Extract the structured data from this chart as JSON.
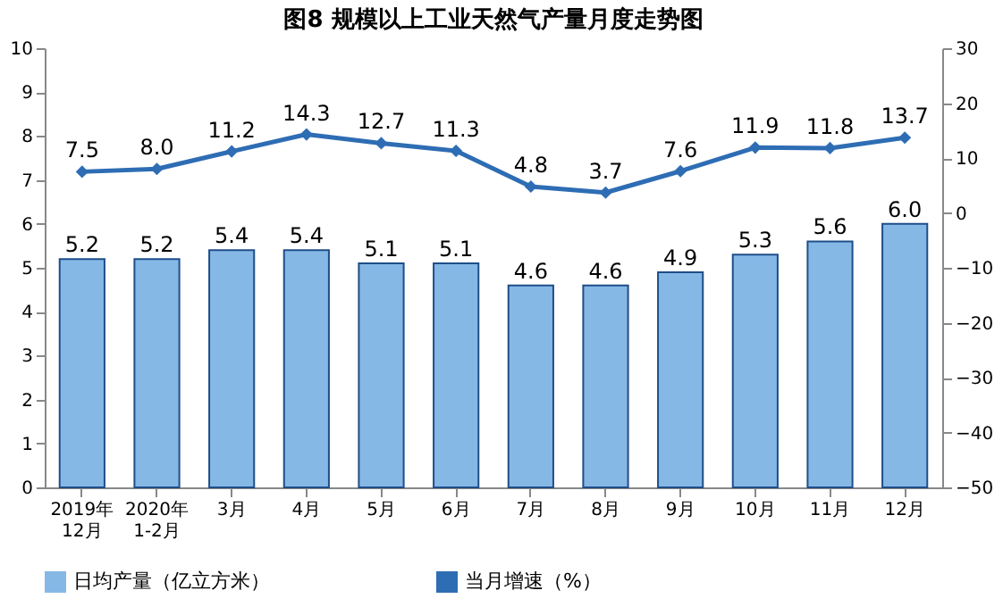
{
  "chart_data": {
    "type": "bar",
    "title": "图8  规模以上工业天然气产量月度走势图",
    "categories": [
      "2019年\n12月",
      "2020年\n1-2月",
      "3月",
      "4月",
      "5月",
      "6月",
      "7月",
      "8月",
      "9月",
      "10月",
      "11月",
      "12月"
    ],
    "series": [
      {
        "name": "日均产量（亿立方米）",
        "color": "#86b8e6",
        "values": [
          5.2,
          5.2,
          5.4,
          5.4,
          5.1,
          5.1,
          4.6,
          4.6,
          4.9,
          5.3,
          5.6,
          6.0
        ],
        "value_labels": [
          "5.2",
          "5.2",
          "5.4",
          "5.4",
          "5.1",
          "5.1",
          "4.6",
          "4.6",
          "4.9",
          "5.3",
          "5.6",
          "6.0"
        ]
      },
      {
        "name": "当月增速（%）",
        "type": "line",
        "axis": "y2",
        "color": "#2e6db4",
        "marker": "diamond",
        "values": [
          7.5,
          8.0,
          11.2,
          14.3,
          12.7,
          11.3,
          4.8,
          3.7,
          7.6,
          11.9,
          11.8,
          13.7
        ],
        "value_labels": [
          "7.5",
          "8.0",
          "11.2",
          "14.3",
          "12.7",
          "11.3",
          "4.8",
          "3.7",
          "7.6",
          "11.9",
          "11.8",
          "13.7"
        ]
      }
    ],
    "ylim": [
      0,
      10
    ],
    "yticks": [
      0,
      1,
      2,
      3,
      4,
      5,
      6,
      7,
      8,
      9,
      10
    ],
    "y2lim": [
      -50,
      30
    ],
    "y2ticks": [
      -50,
      -40,
      -30,
      -20,
      -10,
      0,
      10,
      20,
      30
    ],
    "grid": false,
    "legend": "bottom"
  }
}
